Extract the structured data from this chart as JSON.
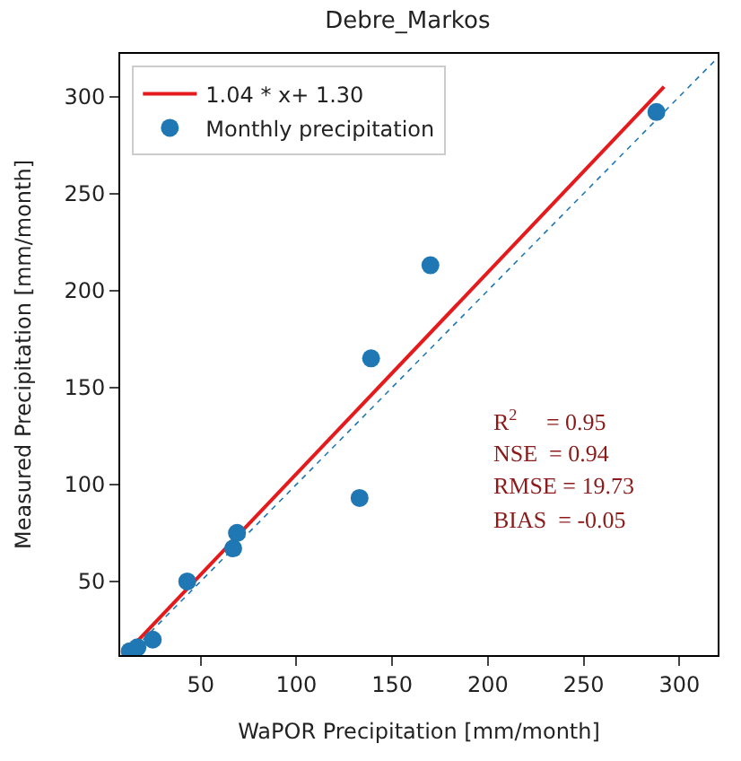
{
  "chart_data": {
    "type": "scatter",
    "title": "Debre_Markos",
    "xlabel": "WaPOR Precipitation [mm/month]",
    "ylabel": "Measured Precipitation [mm/month]",
    "xlim": [
      8,
      320
    ],
    "ylim": [
      12,
      322
    ],
    "xticks": [
      50,
      100,
      150,
      200,
      250,
      300
    ],
    "yticks": [
      50,
      100,
      150,
      200,
      250,
      300
    ],
    "legend": "top left",
    "series": [
      {
        "name": "1.04 * x+ 1.30",
        "type": "line",
        "color": "#e41a1c",
        "line_style": "solid",
        "marker": "none",
        "x": [
          12,
          292
        ],
        "values": [
          14,
          305
        ]
      },
      {
        "type": "line",
        "color": "#1f77b4",
        "line_style": "dotted",
        "marker": "none",
        "x": [
          12,
          320
        ],
        "values": [
          12,
          320
        ]
      },
      {
        "name": "Monthly precipitation",
        "color": "#1f77b4",
        "marker": "circle",
        "x": [
          13,
          17,
          25,
          43,
          67,
          69,
          133,
          139,
          170,
          288
        ],
        "values": [
          14,
          16,
          20,
          50,
          67,
          75,
          93,
          165,
          213,
          292
        ]
      }
    ],
    "annotations": [
      "R$^{2}$     = 0.95",
      "NSE  = 0.94",
      "RMSE = 19.73",
      "BIAS  = -0.05"
    ]
  }
}
